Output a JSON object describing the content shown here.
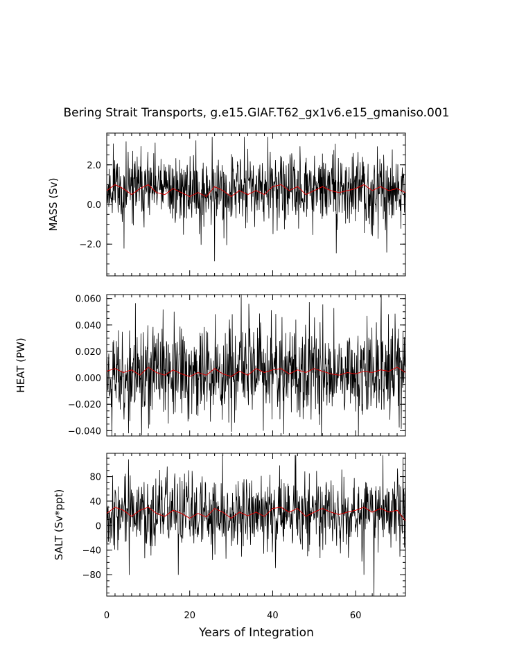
{
  "chart_data": {
    "type": "line",
    "title": "Bering Strait Transports, g.e15.GIAF.T62_gx1v6.e15_gmaniso.001",
    "xlabel": "Years of Integration",
    "xlim": [
      0,
      72
    ],
    "xticks": [
      "0",
      "20",
      "40",
      "60"
    ],
    "series_colors": {
      "raw": "#000000",
      "smoothed": "#e00000"
    },
    "panels": [
      {
        "id": "mass",
        "ylabel": "MASS (Sv)",
        "ylim": [
          -3.6,
          3.6
        ],
        "yticks": [
          {
            "v": 2.0,
            "label": "2.0"
          },
          {
            "v": 0.0,
            "label": "0.0"
          },
          {
            "v": -2.0,
            "label": "−2.0"
          }
        ],
        "raw": {
          "mean": 0.75,
          "sd": 0.55,
          "max": 3.4,
          "min": -3.6,
          "seed": 11
        },
        "smoothed": {
          "x": [
            0,
            2,
            4,
            6,
            8,
            10,
            12,
            14,
            16,
            18,
            20,
            22,
            24,
            26,
            28,
            30,
            32,
            34,
            36,
            38,
            40,
            42,
            44,
            46,
            48,
            50,
            52,
            54,
            56,
            58,
            60,
            62,
            64,
            66,
            68,
            70,
            72
          ],
          "y": [
            0.7,
            1.0,
            0.8,
            0.5,
            0.8,
            1.0,
            0.6,
            0.5,
            0.8,
            0.6,
            0.4,
            0.6,
            0.4,
            0.9,
            0.7,
            0.4,
            0.7,
            0.5,
            0.7,
            0.5,
            0.9,
            1.0,
            0.7,
            0.9,
            0.5,
            0.7,
            0.9,
            0.7,
            0.6,
            0.7,
            0.8,
            1.0,
            0.7,
            0.9,
            0.7,
            0.8,
            0.6
          ]
        }
      },
      {
        "id": "heat",
        "ylabel": "HEAT (PW)",
        "ylim": [
          -0.044,
          0.063
        ],
        "yticks": [
          {
            "v": 0.06,
            "label": "0.060"
          },
          {
            "v": 0.04,
            "label": "0.040"
          },
          {
            "v": 0.02,
            "label": "0.020"
          },
          {
            "v": 0.0,
            "label": "0.000"
          },
          {
            "v": -0.02,
            "label": "−0.020"
          },
          {
            "v": -0.04,
            "label": "−0.040"
          }
        ],
        "raw": {
          "mean": 0.004,
          "sd": 0.011,
          "max": 0.063,
          "min": -0.044,
          "seed": 23
        },
        "smoothed": {
          "x": [
            0,
            2,
            4,
            6,
            8,
            10,
            12,
            14,
            16,
            18,
            20,
            22,
            24,
            26,
            28,
            30,
            32,
            34,
            36,
            38,
            40,
            42,
            44,
            46,
            48,
            50,
            52,
            54,
            56,
            58,
            60,
            62,
            64,
            66,
            68,
            70,
            72
          ],
          "y": [
            0.005,
            0.007,
            0.004,
            0.006,
            0.002,
            0.008,
            0.004,
            0.002,
            0.006,
            0.003,
            0.001,
            0.004,
            0.002,
            0.007,
            0.003,
            0.001,
            0.005,
            0.002,
            0.007,
            0.004,
            0.006,
            0.007,
            0.003,
            0.006,
            0.004,
            0.007,
            0.005,
            0.003,
            0.002,
            0.004,
            0.003,
            0.005,
            0.004,
            0.006,
            0.005,
            0.008,
            0.004
          ]
        }
      },
      {
        "id": "salt",
        "ylabel": "SALT (Sv*ppt)",
        "ylim": [
          -115,
          118
        ],
        "yticks": [
          {
            "v": 80,
            "label": "80"
          },
          {
            "v": 40,
            "label": "40"
          },
          {
            "v": 0,
            "label": "0"
          },
          {
            "v": -40,
            "label": "−40"
          },
          {
            "v": -80,
            "label": "−80"
          }
        ],
        "raw": {
          "mean": 22,
          "sd": 18,
          "max": 115,
          "min": -115,
          "seed": 37
        },
        "smoothed": {
          "x": [
            0,
            2,
            4,
            6,
            8,
            10,
            12,
            14,
            16,
            18,
            20,
            22,
            24,
            26,
            28,
            30,
            32,
            34,
            36,
            38,
            40,
            42,
            44,
            46,
            48,
            50,
            52,
            54,
            56,
            58,
            60,
            62,
            64,
            66,
            68,
            70,
            72
          ],
          "y": [
            20,
            30,
            25,
            15,
            25,
            30,
            20,
            15,
            25,
            20,
            12,
            20,
            14,
            28,
            22,
            12,
            22,
            16,
            22,
            15,
            28,
            30,
            22,
            28,
            15,
            22,
            28,
            22,
            18,
            22,
            25,
            30,
            22,
            28,
            22,
            25,
            8
          ]
        }
      }
    ]
  }
}
